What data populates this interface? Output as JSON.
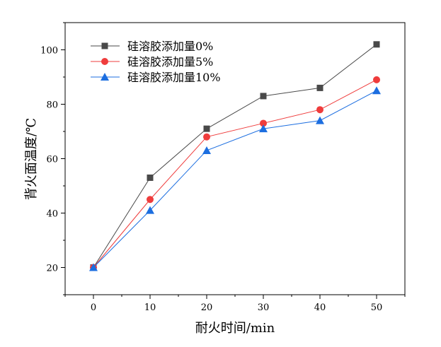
{
  "chart_data": {
    "type": "line",
    "title": "",
    "xlabel": "耐火时间/min",
    "ylabel": "背火面温度/℃",
    "xlim": [
      -5,
      55
    ],
    "ylim": [
      10,
      110
    ],
    "xticks": [
      0,
      10,
      20,
      30,
      40,
      50
    ],
    "yticks": [
      20,
      40,
      60,
      80,
      100
    ],
    "grid": false,
    "legend_position": "top-left",
    "x": [
      0,
      10,
      20,
      30,
      40,
      50
    ],
    "series": [
      {
        "name": "硅溶胶添加量0%",
        "values": [
          20,
          53,
          71,
          83,
          86,
          102
        ],
        "color": "#494949",
        "marker": "square"
      },
      {
        "name": "硅溶胶添加量5%",
        "values": [
          20,
          45,
          68,
          73,
          78,
          89
        ],
        "color": "#ef3c3c",
        "marker": "circle"
      },
      {
        "name": "硅溶胶添加量10%",
        "values": [
          20,
          41,
          63,
          71,
          74,
          85
        ],
        "color": "#1c6ee0",
        "marker": "triangle"
      }
    ]
  }
}
